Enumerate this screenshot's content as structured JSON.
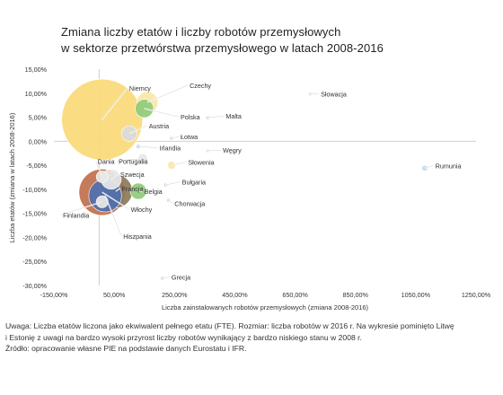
{
  "title_line1": "Zmiana liczby etatów i liczby robotów przemysłowych",
  "title_line2": "w sektorze przetwórstwa przemysłowego w latach 2008-2016",
  "notes": {
    "line1": "Uwaga: Liczba etatów liczona jako ekwiwalent pełnego etatu (FTE). Rozmiar: liczba robotów w 2016 r. Na wykresie pominięto Litwę",
    "line2": "i Estonię z uwagi na bardzo wysoki przyrost liczby robotów wynikający z bardzo niskiego stanu w 2008 r.",
    "source": "Źródło: opracowanie własne PIE na podstawie danych Eurostatu i IFR."
  },
  "chart_data": {
    "type": "scatter",
    "title": "Zmiana liczby etatów i liczby robotów przemysłowych w sektorze przetwórstwa przemysłowego w latach 2008-2016",
    "xlabel": "Liczba zainstalowanych robotów przemysłowych (zmiana 2008-2016)",
    "ylabel": "Liczba etatów (zmiana w latach 2008-2016)",
    "xlim": [
      -1.5,
      12.5
    ],
    "ylim": [
      -0.3,
      0.15
    ],
    "x_ticks": [
      -1.5,
      0.5,
      2.5,
      4.5,
      6.5,
      8.5,
      10.5,
      12.5
    ],
    "x_tick_labels": [
      "-150,00%",
      "50,00%",
      "250,00%",
      "450,00%",
      "650,00%",
      "850,00%",
      "1050,00%",
      "1250,00%"
    ],
    "y_ticks": [
      0.15,
      0.1,
      0.05,
      0.0,
      -0.05,
      -0.1,
      -0.15,
      -0.2,
      -0.25,
      -0.3
    ],
    "y_tick_labels": [
      "15,00%",
      "10,00%",
      "5,00%",
      "0,00%",
      "-5,00%",
      "-10,00%",
      "-15,00%",
      "-20,00%",
      "-25,00%",
      "-30,00%"
    ],
    "grid": false,
    "points": [
      {
        "label": "Niemcy",
        "x": 0.1,
        "y": 0.045,
        "robots": 189300,
        "color": "#FAD978",
        "lx": 1.0,
        "ly": 0.105
      },
      {
        "label": "Czechy",
        "x": 1.6,
        "y": 0.081,
        "robots": 13000,
        "color": "#FBE6A5",
        "lx": 3.0,
        "ly": 0.111
      },
      {
        "label": "Słowacja",
        "x": 7.0,
        "y": 0.098,
        "robots": 500,
        "color": "#E8E8E8",
        "lx": 7.35,
        "ly": 0.093
      },
      {
        "label": "Polska",
        "x": 1.5,
        "y": 0.068,
        "robots": 9700,
        "color": "#8FCB7A",
        "lx": 2.7,
        "ly": 0.045
      },
      {
        "label": "Malta",
        "x": 3.6,
        "y": 0.049,
        "robots": 50,
        "color": "#E0E0E0",
        "lx": 4.2,
        "ly": 0.047
      },
      {
        "label": "Austria",
        "x": 1.0,
        "y": 0.016,
        "robots": 7000,
        "color": "#DADADA",
        "lx": 1.65,
        "ly": 0.027
      },
      {
        "label": "Łotwa",
        "x": 2.4,
        "y": 0.006,
        "robots": 50,
        "color": "#E0E0E0",
        "lx": 2.7,
        "ly": 0.004
      },
      {
        "label": "Irlandia",
        "x": 1.3,
        "y": -0.011,
        "robots": 600,
        "color": "#BFDCF5",
        "lx": 2.0,
        "ly": -0.019
      },
      {
        "label": "Węgry",
        "x": 3.6,
        "y": -0.02,
        "robots": 400,
        "color": "#E8E8E8",
        "lx": 4.1,
        "ly": -0.024
      },
      {
        "label": "Portugalia",
        "x": 1.45,
        "y": -0.036,
        "robots": 2700,
        "color": "#E8E8E8",
        "lx": 0.65,
        "ly": -0.047
      },
      {
        "label": "Słowenia",
        "x": 2.4,
        "y": -0.05,
        "robots": 1800,
        "color": "#FBE6A5",
        "lx": 2.95,
        "ly": -0.049
      },
      {
        "label": "Rumunia",
        "x": 10.8,
        "y": -0.056,
        "robots": 1000,
        "color": "#BFDCF5",
        "lx": 11.15,
        "ly": -0.056
      },
      {
        "label": "Dania",
        "x": 0.1,
        "y": -0.074,
        "robots": 4000,
        "color": "#E8E8E8",
        "lx": -0.05,
        "ly": -0.047
      },
      {
        "label": "Szwecja",
        "x": 0.4,
        "y": -0.079,
        "robots": 11800,
        "color": "#E8E8E8",
        "lx": 0.7,
        "ly": -0.074
      },
      {
        "label": "Bułgaria",
        "x": 2.2,
        "y": -0.091,
        "robots": 100,
        "color": "#E0E0E0",
        "lx": 2.75,
        "ly": -0.09
      },
      {
        "label": "Belgia",
        "x": 1.3,
        "y": -0.104,
        "robots": 7600,
        "color": "#8FCB7A",
        "lx": 1.5,
        "ly": -0.11
      },
      {
        "label": "Francja",
        "x": 0.55,
        "y": -0.104,
        "robots": 32400,
        "color": "#8C7A5A",
        "lx": 0.75,
        "ly": -0.104
      },
      {
        "label": "Hiszpania",
        "x": 0.2,
        "y": -0.113,
        "robots": 31100,
        "color": "#4F6FAF",
        "lx": 0.8,
        "ly": -0.203
      },
      {
        "label": "Włochy",
        "x": 0.1,
        "y": -0.106,
        "robots": 62100,
        "color": "#C0704C",
        "lx": 1.05,
        "ly": -0.147
      },
      {
        "label": "Finlandia",
        "x": 0.1,
        "y": -0.126,
        "robots": 4100,
        "color": "#E8E8E8",
        "lx": -1.2,
        "ly": -0.159
      },
      {
        "label": "Chorwacja",
        "x": 2.3,
        "y": -0.123,
        "robots": 50,
        "color": "#E0E0E0",
        "lx": 2.5,
        "ly": -0.135
      },
      {
        "label": "Grecja",
        "x": 2.1,
        "y": -0.285,
        "robots": 400,
        "color": "#E0E0E0",
        "lx": 2.4,
        "ly": -0.288
      }
    ]
  }
}
